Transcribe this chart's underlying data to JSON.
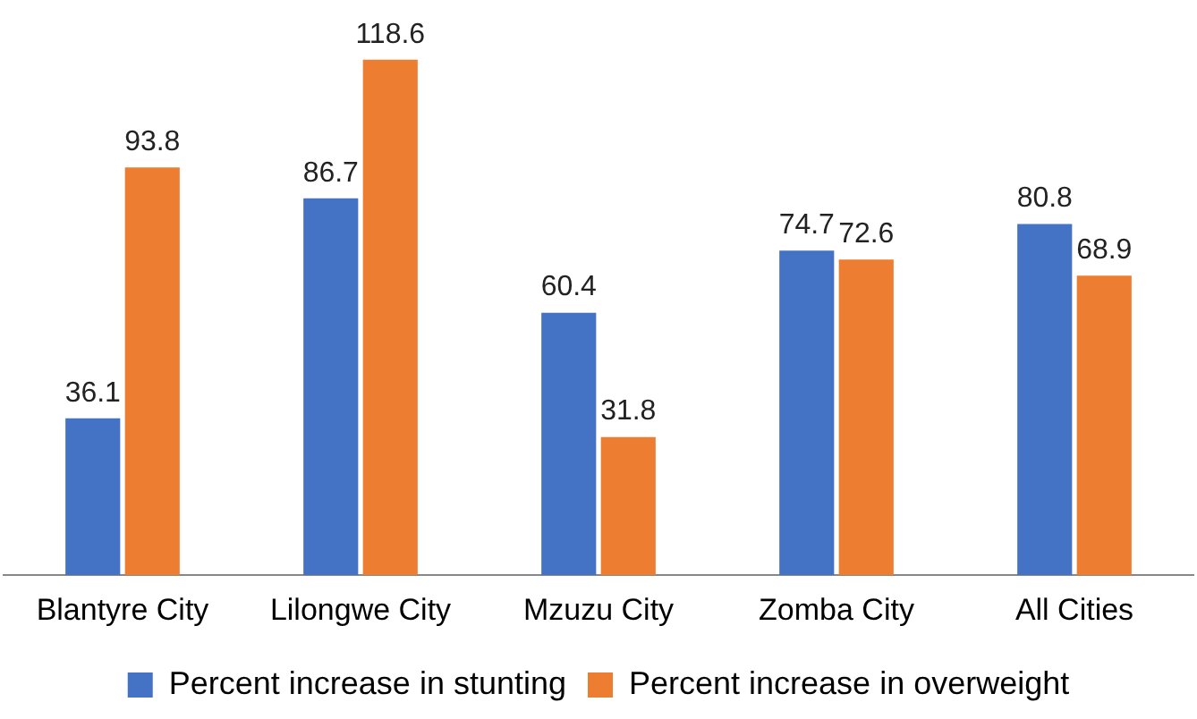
{
  "chart_data": {
    "type": "bar",
    "categories": [
      "Blantyre City",
      "Lilongwe City",
      "Mzuzu City",
      "Zomba City",
      "All Cities"
    ],
    "series": [
      {
        "name": "Percent increase in stunting",
        "color": "#4472c4",
        "values": [
          36.1,
          86.7,
          60.4,
          74.7,
          80.8
        ]
      },
      {
        "name": "Percent increase in overweight",
        "color": "#ed7d31",
        "values": [
          93.8,
          118.6,
          31.8,
          72.6,
          68.9
        ]
      }
    ],
    "data_labels": true,
    "legend": "bottom",
    "grid": false
  }
}
